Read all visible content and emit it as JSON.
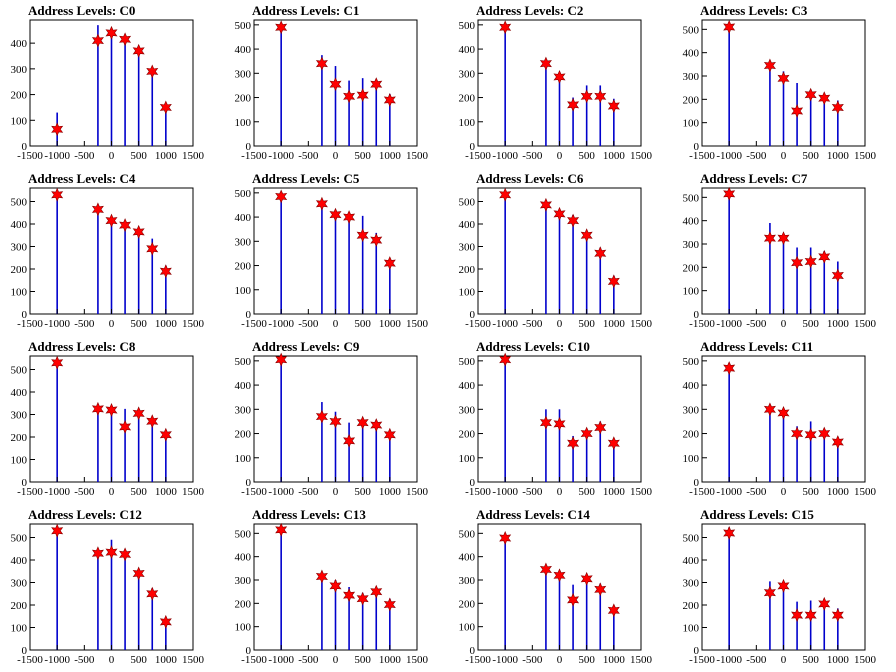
{
  "chart_data": [
    {
      "type": "bar",
      "title": "Address Levels: C0",
      "xlim": [
        -1500,
        1500
      ],
      "ylim": [
        0,
        490
      ],
      "yticks": [
        0,
        100,
        200,
        300,
        400
      ],
      "bars": [
        [
          -1000,
          130
        ],
        [
          -250,
          470
        ],
        [
          0,
          450
        ],
        [
          250,
          425
        ],
        [
          500,
          385
        ],
        [
          750,
          300
        ],
        [
          1000,
          160
        ]
      ],
      "peaks": [
        [
          -1000,
          65
        ],
        [
          -250,
          410
        ],
        [
          0,
          440
        ],
        [
          250,
          415
        ],
        [
          500,
          370
        ],
        [
          750,
          290
        ],
        [
          1000,
          150
        ]
      ]
    },
    {
      "type": "bar",
      "title": "Address Levels: C1",
      "xlim": [
        -1500,
        1500
      ],
      "ylim": [
        0,
        520
      ],
      "yticks": [
        0,
        100,
        200,
        300,
        400,
        500
      ],
      "bars": [
        [
          -1000,
          505
        ],
        [
          -250,
          375
        ],
        [
          0,
          330
        ],
        [
          250,
          270
        ],
        [
          500,
          280
        ],
        [
          750,
          240
        ],
        [
          1000,
          215
        ]
      ],
      "peaks": [
        [
          -1000,
          490
        ],
        [
          -250,
          340
        ],
        [
          0,
          255
        ],
        [
          250,
          205
        ],
        [
          500,
          210
        ],
        [
          750,
          255
        ],
        [
          1000,
          190
        ]
      ]
    },
    {
      "type": "bar",
      "title": "Address Levels: C2",
      "xlim": [
        -1500,
        1500
      ],
      "ylim": [
        0,
        520
      ],
      "yticks": [
        0,
        100,
        200,
        300,
        400,
        500
      ],
      "bars": [
        [
          -1000,
          505
        ],
        [
          -250,
          345
        ],
        [
          0,
          300
        ],
        [
          250,
          200
        ],
        [
          500,
          250
        ],
        [
          750,
          250
        ],
        [
          1000,
          195
        ]
      ],
      "peaks": [
        [
          -1000,
          490
        ],
        [
          -250,
          340
        ],
        [
          0,
          285
        ],
        [
          250,
          170
        ],
        [
          500,
          205
        ],
        [
          750,
          205
        ],
        [
          1000,
          165
        ]
      ]
    },
    {
      "type": "bar",
      "title": "Address Levels: C3",
      "xlim": [
        -1500,
        1500
      ],
      "ylim": [
        0,
        540
      ],
      "yticks": [
        0,
        100,
        200,
        300,
        400,
        500
      ],
      "bars": [
        [
          -1000,
          525
        ],
        [
          -250,
          355
        ],
        [
          0,
          320
        ],
        [
          250,
          270
        ],
        [
          500,
          240
        ],
        [
          750,
          215
        ],
        [
          1000,
          195
        ]
      ],
      "peaks": [
        [
          -1000,
          510
        ],
        [
          -250,
          345
        ],
        [
          0,
          290
        ],
        [
          250,
          150
        ],
        [
          500,
          220
        ],
        [
          750,
          205
        ],
        [
          1000,
          165
        ]
      ]
    },
    {
      "type": "bar",
      "title": "Address Levels: C4",
      "xlim": [
        -1500,
        1500
      ],
      "ylim": [
        0,
        560
      ],
      "yticks": [
        0,
        100,
        200,
        300,
        400,
        500
      ],
      "bars": [
        [
          -1000,
          545
        ],
        [
          -250,
          475
        ],
        [
          0,
          430
        ],
        [
          250,
          405
        ],
        [
          500,
          380
        ],
        [
          750,
          335
        ],
        [
          1000,
          215
        ]
      ],
      "peaks": [
        [
          -1000,
          530
        ],
        [
          -250,
          465
        ],
        [
          0,
          415
        ],
        [
          250,
          395
        ],
        [
          500,
          365
        ],
        [
          750,
          290
        ],
        [
          1000,
          190
        ]
      ]
    },
    {
      "type": "bar",
      "title": "Address Levels: C5",
      "xlim": [
        -1500,
        1500
      ],
      "ylim": [
        0,
        520
      ],
      "yticks": [
        0,
        100,
        200,
        300,
        400,
        500
      ],
      "bars": [
        [
          -1000,
          500
        ],
        [
          -250,
          470
        ],
        [
          0,
          420
        ],
        [
          250,
          415
        ],
        [
          500,
          405
        ],
        [
          750,
          335
        ],
        [
          1000,
          225
        ]
      ],
      "peaks": [
        [
          -1000,
          485
        ],
        [
          -250,
          455
        ],
        [
          0,
          410
        ],
        [
          250,
          400
        ],
        [
          500,
          325
        ],
        [
          750,
          305
        ],
        [
          1000,
          210
        ]
      ]
    },
    {
      "type": "bar",
      "title": "Address Levels: C6",
      "xlim": [
        -1500,
        1500
      ],
      "ylim": [
        0,
        560
      ],
      "yticks": [
        0,
        100,
        200,
        300,
        400,
        500
      ],
      "bars": [
        [
          -1000,
          545
        ],
        [
          -250,
          500
        ],
        [
          0,
          465
        ],
        [
          250,
          440
        ],
        [
          500,
          370
        ],
        [
          750,
          295
        ],
        [
          1000,
          170
        ]
      ],
      "peaks": [
        [
          -1000,
          530
        ],
        [
          -250,
          485
        ],
        [
          0,
          445
        ],
        [
          250,
          415
        ],
        [
          500,
          350
        ],
        [
          750,
          270
        ],
        [
          1000,
          145
        ]
      ]
    },
    {
      "type": "bar",
      "title": "Address Levels: C7",
      "xlim": [
        -1500,
        1500
      ],
      "ylim": [
        0,
        540
      ],
      "yticks": [
        0,
        100,
        200,
        300,
        400,
        500
      ],
      "bars": [
        [
          -1000,
          525
        ],
        [
          -250,
          390
        ],
        [
          0,
          330
        ],
        [
          250,
          285
        ],
        [
          500,
          285
        ],
        [
          750,
          270
        ],
        [
          1000,
          225
        ]
      ],
      "peaks": [
        [
          -1000,
          515
        ],
        [
          -250,
          325
        ],
        [
          0,
          325
        ],
        [
          250,
          220
        ],
        [
          500,
          225
        ],
        [
          750,
          245
        ],
        [
          1000,
          165
        ]
      ]
    },
    {
      "type": "bar",
      "title": "Address Levels: C8",
      "xlim": [
        -1500,
        1500
      ],
      "ylim": [
        0,
        560
      ],
      "yticks": [
        0,
        100,
        200,
        300,
        400,
        500
      ],
      "bars": [
        [
          -1000,
          545
        ],
        [
          -250,
          345
        ],
        [
          0,
          335
        ],
        [
          250,
          325
        ],
        [
          500,
          325
        ],
        [
          750,
          290
        ],
        [
          1000,
          230
        ]
      ],
      "peaks": [
        [
          -1000,
          530
        ],
        [
          -250,
          325
        ],
        [
          0,
          320
        ],
        [
          250,
          245
        ],
        [
          500,
          305
        ],
        [
          750,
          270
        ],
        [
          1000,
          210
        ]
      ]
    },
    {
      "type": "bar",
      "title": "Address Levels: C9",
      "xlim": [
        -1500,
        1500
      ],
      "ylim": [
        0,
        520
      ],
      "yticks": [
        0,
        100,
        200,
        300,
        400,
        500
      ],
      "bars": [
        [
          -1000,
          505
        ],
        [
          -250,
          330
        ],
        [
          0,
          290
        ],
        [
          250,
          245
        ],
        [
          500,
          255
        ],
        [
          750,
          245
        ],
        [
          1000,
          210
        ]
      ],
      "peaks": [
        [
          -1000,
          505
        ],
        [
          -250,
          270
        ],
        [
          0,
          250
        ],
        [
          250,
          170
        ],
        [
          500,
          245
        ],
        [
          750,
          235
        ],
        [
          1000,
          195
        ]
      ]
    },
    {
      "type": "bar",
      "title": "Address Levels: C10",
      "xlim": [
        -1500,
        1500
      ],
      "ylim": [
        0,
        520
      ],
      "yticks": [
        0,
        100,
        200,
        300,
        400,
        500
      ],
      "bars": [
        [
          -1000,
          505
        ],
        [
          -250,
          300
        ],
        [
          0,
          300
        ],
        [
          250,
          190
        ],
        [
          500,
          215
        ],
        [
          750,
          250
        ],
        [
          1000,
          175
        ]
      ],
      "peaks": [
        [
          -1000,
          505
        ],
        [
          -250,
          245
        ],
        [
          0,
          240
        ],
        [
          250,
          160
        ],
        [
          500,
          200
        ],
        [
          750,
          225
        ],
        [
          1000,
          160
        ]
      ]
    },
    {
      "type": "bar",
      "title": "Address Levels: C11",
      "xlim": [
        -1500,
        1500
      ],
      "ylim": [
        0,
        520
      ],
      "yticks": [
        0,
        100,
        200,
        300,
        400,
        500
      ],
      "bars": [
        [
          -1000,
          490
        ],
        [
          -250,
          315
        ],
        [
          0,
          300
        ],
        [
          250,
          230
        ],
        [
          500,
          250
        ],
        [
          750,
          210
        ],
        [
          1000,
          185
        ]
      ],
      "peaks": [
        [
          -1000,
          470
        ],
        [
          -250,
          300
        ],
        [
          0,
          285
        ],
        [
          250,
          200
        ],
        [
          500,
          195
        ],
        [
          750,
          200
        ],
        [
          1000,
          165
        ]
      ]
    },
    {
      "type": "bar",
      "title": "Address Levels: C12",
      "xlim": [
        -1500,
        1500
      ],
      "ylim": [
        0,
        560
      ],
      "yticks": [
        0,
        100,
        200,
        300,
        400,
        500
      ],
      "bars": [
        [
          -1000,
          545
        ],
        [
          -250,
          450
        ],
        [
          0,
          490
        ],
        [
          250,
          440
        ],
        [
          500,
          360
        ],
        [
          750,
          275
        ],
        [
          1000,
          145
        ]
      ],
      "peaks": [
        [
          -1000,
          530
        ],
        [
          -250,
          430
        ],
        [
          0,
          435
        ],
        [
          250,
          425
        ],
        [
          500,
          340
        ],
        [
          750,
          250
        ],
        [
          1000,
          125
        ]
      ]
    },
    {
      "type": "bar",
      "title": "Address Levels: C13",
      "xlim": [
        -1500,
        1500
      ],
      "ylim": [
        0,
        540
      ],
      "yticks": [
        0,
        100,
        200,
        300,
        400,
        500
      ],
      "bars": [
        [
          -1000,
          525
        ],
        [
          -250,
          335
        ],
        [
          0,
          300
        ],
        [
          250,
          270
        ],
        [
          500,
          245
        ],
        [
          750,
          250
        ],
        [
          1000,
          220
        ]
      ],
      "peaks": [
        [
          -1000,
          515
        ],
        [
          -250,
          315
        ],
        [
          0,
          275
        ],
        [
          250,
          235
        ],
        [
          500,
          220
        ],
        [
          750,
          250
        ],
        [
          1000,
          195
        ]
      ]
    },
    {
      "type": "bar",
      "title": "Address Levels: C14",
      "xlim": [
        -1500,
        1500
      ],
      "ylim": [
        0,
        540
      ],
      "yticks": [
        0,
        100,
        200,
        300,
        400,
        500
      ],
      "bars": [
        [
          -1000,
          500
        ],
        [
          -250,
          355
        ],
        [
          0,
          335
        ],
        [
          250,
          280
        ],
        [
          500,
          315
        ],
        [
          750,
          285
        ],
        [
          1000,
          190
        ]
      ],
      "peaks": [
        [
          -1000,
          480
        ],
        [
          -250,
          345
        ],
        [
          0,
          320
        ],
        [
          250,
          215
        ],
        [
          500,
          305
        ],
        [
          750,
          260
        ],
        [
          1000,
          170
        ]
      ]
    },
    {
      "type": "bar",
      "title": "Address Levels: C15",
      "xlim": [
        -1500,
        1500
      ],
      "ylim": [
        0,
        560
      ],
      "yticks": [
        0,
        100,
        200,
        300,
        400,
        500
      ],
      "bars": [
        [
          -1000,
          545
        ],
        [
          -250,
          305
        ],
        [
          0,
          300
        ],
        [
          250,
          215
        ],
        [
          500,
          220
        ],
        [
          750,
          225
        ],
        [
          1000,
          185
        ]
      ],
      "peaks": [
        [
          -1000,
          520
        ],
        [
          -250,
          255
        ],
        [
          0,
          285
        ],
        [
          250,
          155
        ],
        [
          500,
          155
        ],
        [
          750,
          205
        ],
        [
          1000,
          155
        ]
      ]
    }
  ],
  "xticks": [
    -1500,
    -1000,
    -500,
    0,
    500,
    1000,
    1500
  ],
  "xtick_labels": [
    "-1500",
    "-1000",
    "-500",
    "0",
    "500",
    "1000",
    "1500"
  ],
  "colors": {
    "bar": "#0000cc",
    "marker_fill": "#ff0000",
    "marker_stroke": "#880000",
    "axis": "#000000"
  }
}
